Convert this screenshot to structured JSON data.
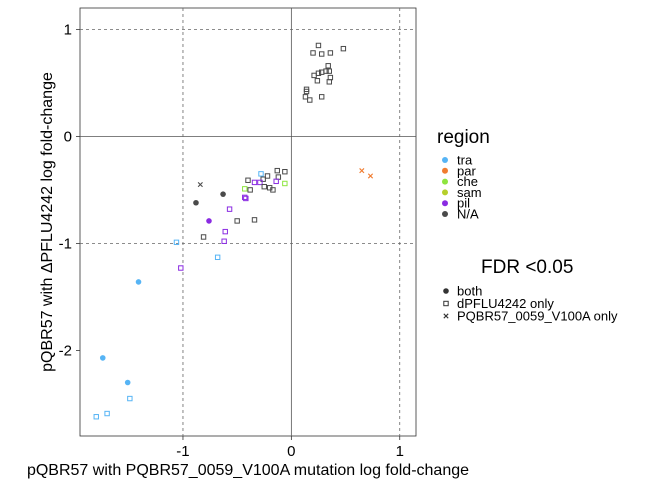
{
  "chart_data": {
    "type": "scatter",
    "xlabel": "pQBR57 with PQBR57_0059_V100A mutation log fold-change",
    "ylabel": "pQBR57 with ΔPFLU4242 log fold-change",
    "xlim": [
      -1.95,
      1.15
    ],
    "ylim": [
      -2.8,
      1.2
    ],
    "x_ticks": [
      {
        "value": -1,
        "label": "-1"
      },
      {
        "value": 0,
        "label": "0"
      },
      {
        "value": 1,
        "label": "1"
      }
    ],
    "y_ticks": [
      {
        "value": 1,
        "label": "1"
      },
      {
        "value": 0,
        "label": "0"
      },
      {
        "value": -1,
        "label": "-1"
      },
      {
        "value": -2,
        "label": "-2"
      }
    ],
    "reference_lines": {
      "solid": {
        "x": 0,
        "y": 0
      },
      "dashed": [
        -1,
        1
      ]
    },
    "grid": false,
    "legend_placement": "right",
    "region_legend": {
      "title": "region",
      "items": [
        {
          "key": "tra",
          "label": "tra",
          "color": "#56b4f5"
        },
        {
          "key": "par",
          "label": "par",
          "color": "#f07c30"
        },
        {
          "key": "che",
          "label": "che",
          "color": "#8ee53f"
        },
        {
          "key": "sam",
          "label": "sam",
          "color": "#b5cf2b"
        },
        {
          "key": "pil",
          "label": "pil",
          "color": "#8a2be2"
        },
        {
          "key": "na",
          "label": "N/A",
          "color": "#4a4a4a"
        }
      ]
    },
    "fdr_legend": {
      "title": "FDR <0.05",
      "items": [
        {
          "key": "both",
          "label": "both",
          "shape": "circle"
        },
        {
          "key": "dpflu",
          "label": "dPFLU4242 only",
          "shape": "square"
        },
        {
          "key": "v100a",
          "label": "PQBR57_0059_V100A only",
          "shape": "cross"
        }
      ]
    },
    "points": [
      {
        "x": 0.25,
        "y": 0.85,
        "region": "na",
        "sig": "dpflu"
      },
      {
        "x": 0.48,
        "y": 0.82,
        "region": "na",
        "sig": "dpflu"
      },
      {
        "x": 0.2,
        "y": 0.78,
        "region": "na",
        "sig": "dpflu"
      },
      {
        "x": 0.28,
        "y": 0.77,
        "region": "na",
        "sig": "dpflu"
      },
      {
        "x": 0.36,
        "y": 0.78,
        "region": "na",
        "sig": "dpflu"
      },
      {
        "x": 0.34,
        "y": 0.66,
        "region": "na",
        "sig": "dpflu"
      },
      {
        "x": 0.32,
        "y": 0.61,
        "region": "na",
        "sig": "dpflu"
      },
      {
        "x": 0.35,
        "y": 0.61,
        "region": "na",
        "sig": "dpflu"
      },
      {
        "x": 0.25,
        "y": 0.59,
        "region": "na",
        "sig": "dpflu"
      },
      {
        "x": 0.28,
        "y": 0.6,
        "region": "na",
        "sig": "dpflu"
      },
      {
        "x": 0.21,
        "y": 0.57,
        "region": "na",
        "sig": "dpflu"
      },
      {
        "x": 0.36,
        "y": 0.55,
        "region": "na",
        "sig": "dpflu"
      },
      {
        "x": 0.24,
        "y": 0.52,
        "region": "na",
        "sig": "dpflu"
      },
      {
        "x": 0.35,
        "y": 0.51,
        "region": "na",
        "sig": "dpflu"
      },
      {
        "x": 0.14,
        "y": 0.44,
        "region": "na",
        "sig": "dpflu"
      },
      {
        "x": 0.14,
        "y": 0.42,
        "region": "na",
        "sig": "dpflu"
      },
      {
        "x": 0.13,
        "y": 0.37,
        "region": "na",
        "sig": "dpflu"
      },
      {
        "x": 0.28,
        "y": 0.37,
        "region": "na",
        "sig": "dpflu"
      },
      {
        "x": 0.17,
        "y": 0.34,
        "region": "na",
        "sig": "dpflu"
      },
      {
        "x": 0.65,
        "y": -0.32,
        "region": "par",
        "sig": "v100a"
      },
      {
        "x": 0.73,
        "y": -0.37,
        "region": "par",
        "sig": "v100a"
      },
      {
        "x": -0.13,
        "y": -0.32,
        "region": "na",
        "sig": "dpflu"
      },
      {
        "x": -0.06,
        "y": -0.33,
        "region": "na",
        "sig": "dpflu"
      },
      {
        "x": -0.28,
        "y": -0.35,
        "region": "tra",
        "sig": "dpflu"
      },
      {
        "x": -0.22,
        "y": -0.37,
        "region": "na",
        "sig": "dpflu"
      },
      {
        "x": -0.12,
        "y": -0.38,
        "region": "na",
        "sig": "dpflu"
      },
      {
        "x": -0.26,
        "y": -0.4,
        "region": "na",
        "sig": "dpflu"
      },
      {
        "x": -0.14,
        "y": -0.42,
        "region": "pil",
        "sig": "dpflu"
      },
      {
        "x": -0.4,
        "y": -0.41,
        "region": "na",
        "sig": "dpflu"
      },
      {
        "x": -0.06,
        "y": -0.44,
        "region": "che",
        "sig": "dpflu"
      },
      {
        "x": -0.34,
        "y": -0.43,
        "region": "pil",
        "sig": "dpflu"
      },
      {
        "x": -0.29,
        "y": -0.43,
        "region": "pil",
        "sig": "dpflu"
      },
      {
        "x": -0.25,
        "y": -0.47,
        "region": "na",
        "sig": "dpflu"
      },
      {
        "x": -0.2,
        "y": -0.48,
        "region": "na",
        "sig": "dpflu"
      },
      {
        "x": -0.17,
        "y": -0.5,
        "region": "na",
        "sig": "dpflu"
      },
      {
        "x": -0.43,
        "y": -0.49,
        "region": "che",
        "sig": "dpflu"
      },
      {
        "x": -0.38,
        "y": -0.5,
        "region": "na",
        "sig": "dpflu"
      },
      {
        "x": -0.43,
        "y": -0.57,
        "region": "pil",
        "sig": "dpflu"
      },
      {
        "x": -0.42,
        "y": -0.58,
        "region": "pil",
        "sig": "dpflu"
      },
      {
        "x": -0.84,
        "y": -0.45,
        "region": "na",
        "sig": "v100a"
      },
      {
        "x": -0.63,
        "y": -0.54,
        "region": "na",
        "sig": "both"
      },
      {
        "x": -0.88,
        "y": -0.62,
        "region": "na",
        "sig": "both"
      },
      {
        "x": -0.57,
        "y": -0.68,
        "region": "pil",
        "sig": "dpflu"
      },
      {
        "x": -0.5,
        "y": -0.79,
        "region": "na",
        "sig": "dpflu"
      },
      {
        "x": -0.34,
        "y": -0.78,
        "region": "na",
        "sig": "dpflu"
      },
      {
        "x": -0.76,
        "y": -0.79,
        "region": "pil",
        "sig": "both"
      },
      {
        "x": -0.61,
        "y": -0.89,
        "region": "pil",
        "sig": "dpflu"
      },
      {
        "x": -0.81,
        "y": -0.94,
        "region": "na",
        "sig": "dpflu"
      },
      {
        "x": -0.62,
        "y": -0.98,
        "region": "pil",
        "sig": "dpflu"
      },
      {
        "x": -1.06,
        "y": -0.99,
        "region": "tra",
        "sig": "dpflu"
      },
      {
        "x": -0.68,
        "y": -1.13,
        "region": "tra",
        "sig": "dpflu"
      },
      {
        "x": -1.02,
        "y": -1.23,
        "region": "pil",
        "sig": "dpflu"
      },
      {
        "x": -1.41,
        "y": -1.36,
        "region": "tra",
        "sig": "both"
      },
      {
        "x": -1.74,
        "y": -2.07,
        "region": "tra",
        "sig": "both"
      },
      {
        "x": -1.51,
        "y": -2.3,
        "region": "tra",
        "sig": "both"
      },
      {
        "x": -1.49,
        "y": -2.45,
        "region": "tra",
        "sig": "dpflu"
      },
      {
        "x": -1.7,
        "y": -2.59,
        "region": "tra",
        "sig": "dpflu"
      },
      {
        "x": -1.8,
        "y": -2.62,
        "region": "tra",
        "sig": "dpflu"
      }
    ]
  }
}
